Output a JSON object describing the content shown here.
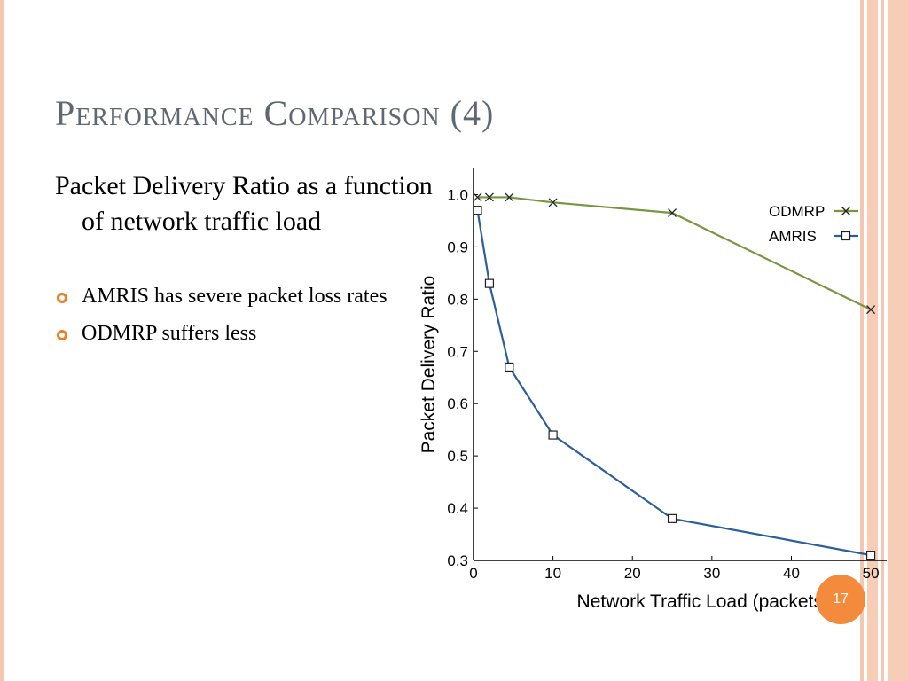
{
  "slide": {
    "title": "Performance Comparison (4)",
    "lead": "Packet Delivery Ratio as a function of network traffic load",
    "bullets": [
      "AMRIS has severe packet loss rates",
      "ODMRP suffers less"
    ],
    "page_number": "17",
    "colors": {
      "accent": "#f48a3c",
      "title": "#5f6773",
      "border": "#f4c7b1"
    }
  },
  "chart_data": {
    "type": "line",
    "title": "",
    "xlabel": "Network Traffic Load (packets/sec)",
    "ylabel": "Packet Delivery Ratio",
    "xlim": [
      0,
      52
    ],
    "ylim": [
      0.3,
      1.05
    ],
    "xticks": [
      0,
      10,
      20,
      30,
      40,
      50
    ],
    "yticks": [
      0.3,
      0.4,
      0.5,
      0.6,
      0.7,
      0.8,
      0.9,
      1.0
    ],
    "ytick_labels": [
      "0.3",
      "0.4",
      "0.5",
      "0.6",
      "0.7",
      "0.8",
      "0.9",
      "1.0"
    ],
    "legend_position": "top-right",
    "grid": false,
    "series": [
      {
        "name": "ODMRP",
        "marker": "x",
        "color": "#76973e",
        "x": [
          0.5,
          2,
          4.5,
          10,
          25,
          50
        ],
        "y": [
          0.995,
          0.995,
          0.995,
          0.985,
          0.965,
          0.78
        ]
      },
      {
        "name": "AMRIS",
        "marker": "square",
        "color": "#2a5f9a",
        "x": [
          0.5,
          2,
          4.5,
          10,
          25,
          50
        ],
        "y": [
          0.97,
          0.83,
          0.67,
          0.54,
          0.38,
          0.31
        ]
      }
    ]
  }
}
